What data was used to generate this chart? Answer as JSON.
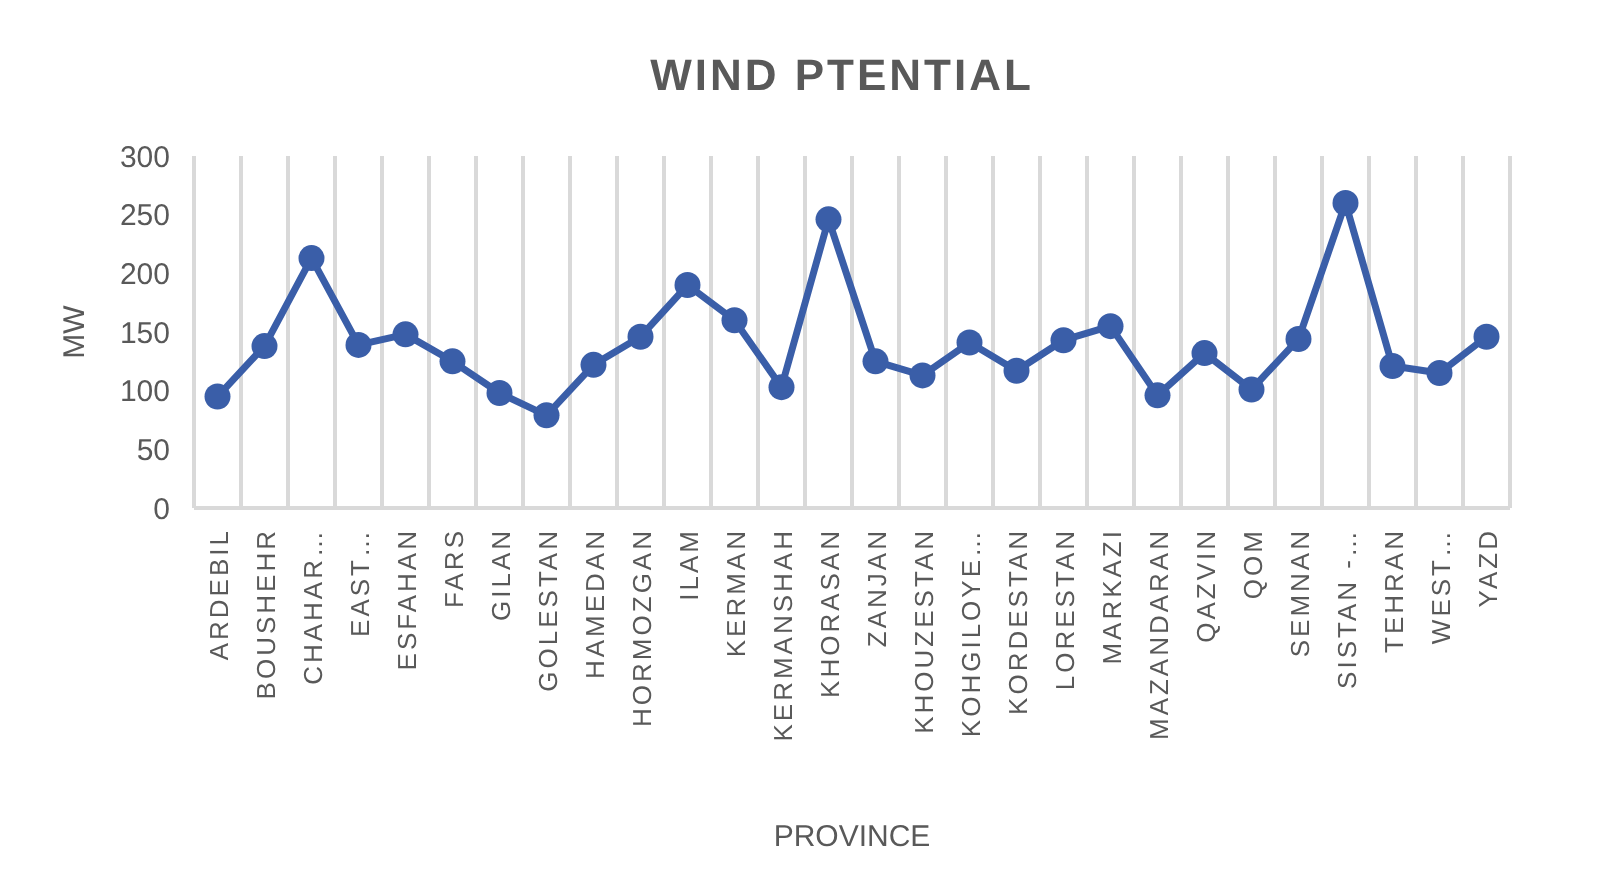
{
  "chart_data": {
    "type": "line",
    "title": "WIND PTENTIAL",
    "xlabel": "PROVINCE",
    "ylabel": "MW",
    "categories": [
      "ARDEBIL",
      "BOUSHEHR",
      "CHAHAR…",
      "EAST…",
      "ESFAHAN",
      "FARS",
      "GILAN",
      "GOLESTAN",
      "HAMEDAN",
      "HORMOZGAN",
      "ILAM",
      "KERMAN",
      "KERMANSHAH",
      "KHORASAN",
      "ZANJAN",
      "KHOUZESTAN",
      "KOHGILOYE…",
      "KORDESTAN",
      "LORESTAN",
      "MARKAZI",
      "MAZANDARAN",
      "QAZVIN",
      "QOM",
      "SEMNAN",
      "SISTAN -…",
      "TEHRAN",
      "WEST…",
      "YAZD"
    ],
    "series": [
      {
        "color": "#3a5ea8",
        "values": [
          95,
          138,
          213,
          139,
          148,
          125,
          98,
          79,
          122,
          146,
          190,
          160,
          103,
          246,
          125,
          113,
          141,
          117,
          143,
          155,
          96,
          132,
          101,
          144,
          260,
          121,
          115,
          146
        ]
      }
    ],
    "ylim": [
      0,
      300
    ],
    "yticks": [
      0,
      50,
      100,
      150,
      200,
      250,
      300
    ],
    "grid": "x",
    "marker": "circle",
    "line_style": "solid"
  }
}
